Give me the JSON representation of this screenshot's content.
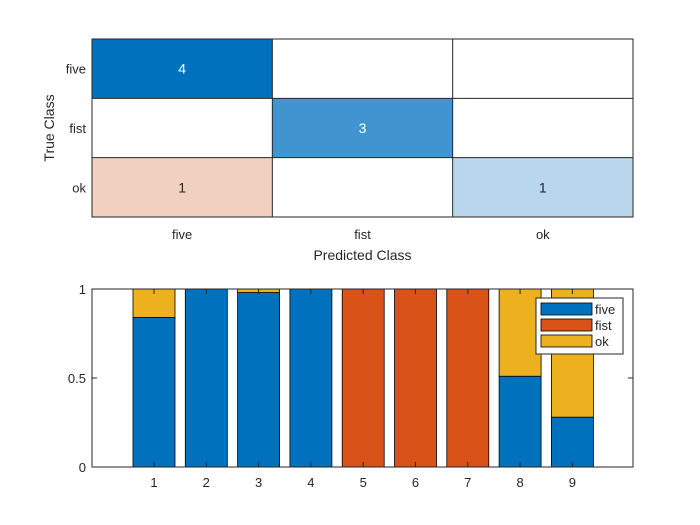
{
  "chart_data": [
    {
      "type": "heatmap",
      "xlabel": "Predicted Class",
      "ylabel": "True Class",
      "x_categories": [
        "five",
        "fist",
        "ok"
      ],
      "y_categories": [
        "five",
        "fist",
        "ok"
      ],
      "cells": [
        {
          "row": 0,
          "col": 0,
          "value": 4,
          "color": "#0072BD"
        },
        {
          "row": 1,
          "col": 1,
          "value": 3,
          "color": "#4095D1"
        },
        {
          "row": 2,
          "col": 0,
          "value": 1,
          "color": "#F2D0C0"
        },
        {
          "row": 2,
          "col": 2,
          "value": 1,
          "color": "#B9D7EC"
        }
      ],
      "text_color_dark_bg": "#ffffff",
      "text_color_light_bg": "#262626"
    },
    {
      "type": "bar",
      "stacked": true,
      "categories": [
        "1",
        "2",
        "3",
        "4",
        "5",
        "6",
        "7",
        "8",
        "9"
      ],
      "series": [
        {
          "name": "five",
          "color": "#0072BD",
          "values": [
            0.84,
            1.0,
            0.98,
            1.0,
            0.0,
            0.0,
            0.0,
            0.51,
            0.28
          ]
        },
        {
          "name": "fist",
          "color": "#D95319",
          "values": [
            0.0,
            0.0,
            0.0,
            0.0,
            1.0,
            1.0,
            1.0,
            0.0,
            0.0
          ]
        },
        {
          "name": "ok",
          "color": "#EDB120",
          "values": [
            0.16,
            0.0,
            0.02,
            0.0,
            0.0,
            0.0,
            0.0,
            0.49,
            0.72
          ]
        }
      ],
      "ylim": [
        0,
        1
      ],
      "yticks": [
        "0",
        "0.5",
        "1"
      ],
      "legend_position": "top-right"
    }
  ]
}
